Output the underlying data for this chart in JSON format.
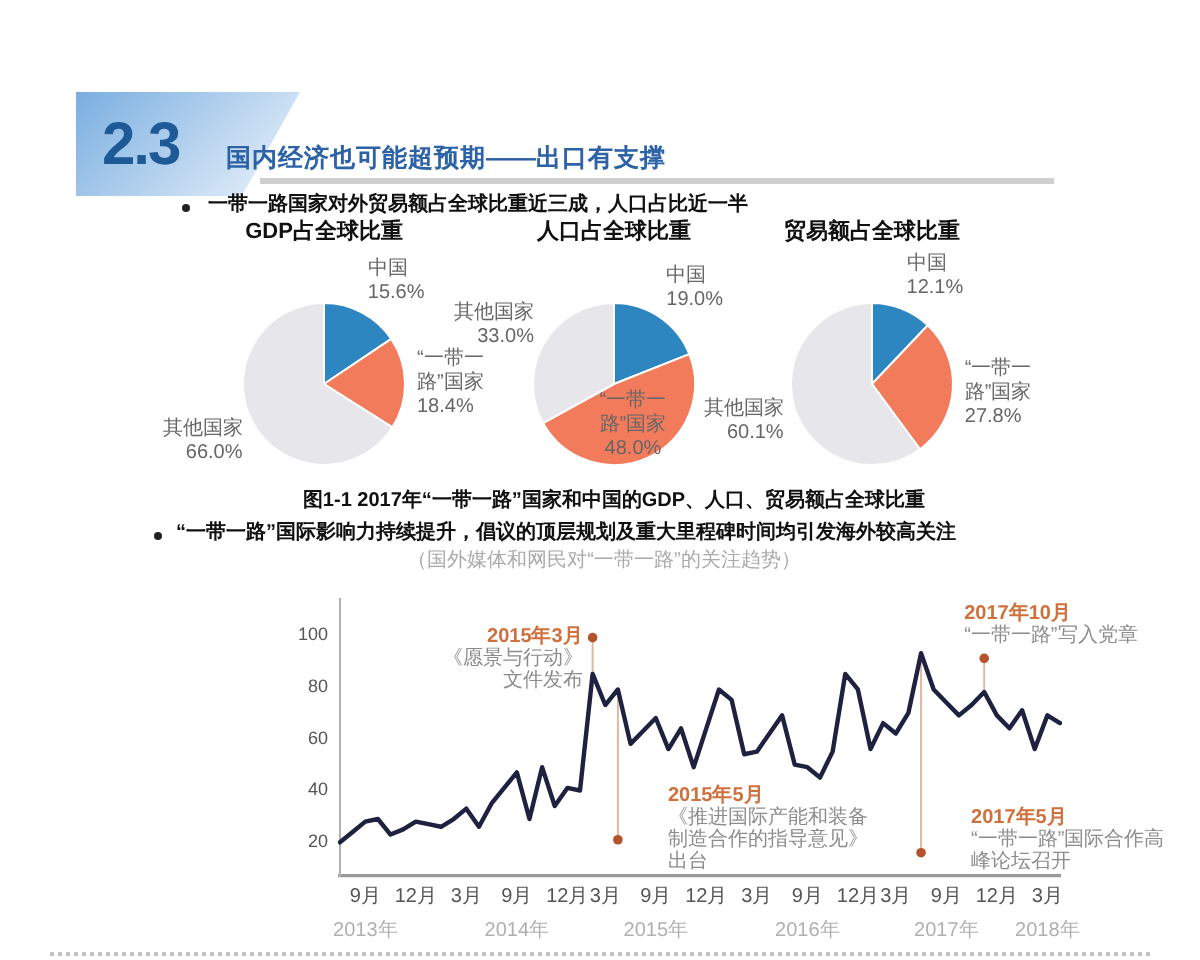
{
  "chart_data": [
    {
      "type": "other",
      "title": "国内经济也可能超预期——出口有支撑",
      "annotations": [
        "2.3",
        "一带一路国家对外贸易额占全球比重近三成，人口占比近一半",
        "图1-1 2017年“一带一路”国家和中国的GDP、人口、贸易额占全球比重"
      ]
    },
    {
      "type": "pie",
      "title": "GDP占全球比重",
      "categories": [
        "中国",
        "“一带一路”国家",
        "其他国家"
      ],
      "values": [
        15.6,
        18.4,
        66.0
      ],
      "value_labels": [
        "15.6%",
        "18.4%",
        "66.0%"
      ],
      "colors": [
        "#2e86c1",
        "#f27b5c",
        "#e6e6eb"
      ]
    },
    {
      "type": "pie",
      "title": "人口占全球比重",
      "categories": [
        "中国",
        "“一带一路”国家",
        "其他国家"
      ],
      "values": [
        19.0,
        48.0,
        33.0
      ],
      "value_labels": [
        "19.0%",
        "48.0%",
        "33.0%"
      ],
      "colors": [
        "#2e86c1",
        "#f27b5c",
        "#e6e6eb"
      ]
    },
    {
      "type": "pie",
      "title": "贸易额占全球比重",
      "categories": [
        "中国",
        "“一带一路”国家",
        "其他国家"
      ],
      "values": [
        12.1,
        27.8,
        60.1
      ],
      "value_labels": [
        "12.1%",
        "27.8%",
        "60.1%"
      ],
      "colors": [
        "#2e86c1",
        "#f27b5c",
        "#e6e6eb"
      ]
    },
    {
      "type": "line",
      "title": "“一带一路”国际影响力持续提升，倡议的顶层规划及重大里程碑时间均引发海外较高关注",
      "subtitle": "（国外媒体和网民对“一带一路”的关注趋势）",
      "categories": [
        null,
        null,
        "9月",
        null,
        null,
        null,
        "12月",
        null,
        null,
        null,
        "3月",
        null,
        null,
        null,
        "9月",
        null,
        null,
        null,
        "12月",
        null,
        null,
        "3月",
        null,
        null,
        null,
        "9月",
        null,
        null,
        null,
        "12月",
        null,
        null,
        null,
        "3月",
        null,
        null,
        null,
        "9月",
        null,
        null,
        null,
        "12月",
        null,
        null,
        "3月",
        null,
        null,
        null,
        "9月",
        null,
        null,
        null,
        "12月",
        null,
        null,
        null,
        "3月",
        null
      ],
      "series": [
        {
          "color": "#1e2140",
          "values": [
            20,
            24,
            28,
            29,
            23,
            25,
            28,
            27,
            26,
            29,
            33,
            26,
            35,
            41,
            47,
            29,
            49,
            34,
            41,
            40,
            85,
            73,
            79,
            58,
            63,
            68,
            56,
            64,
            49,
            64,
            79,
            75,
            54,
            55,
            62,
            69,
            50,
            49,
            45,
            55,
            85,
            79,
            56,
            66,
            62,
            70,
            93,
            79,
            74,
            69,
            73,
            78,
            69,
            64,
            71,
            56,
            69,
            66
          ]
        },
        {
          "type": "scatter",
          "color": "#b5532c",
          "values": [
            null,
            null,
            null,
            null,
            null,
            null,
            null,
            null,
            null,
            null,
            null,
            null,
            null,
            null,
            null,
            null,
            null,
            null,
            null,
            null,
            99,
            null,
            21,
            null,
            null,
            null,
            null,
            null,
            null,
            null,
            null,
            null,
            null,
            null,
            null,
            null,
            null,
            null,
            null,
            null,
            null,
            null,
            null,
            null,
            null,
            null,
            16,
            null,
            null,
            null,
            null,
            91,
            null,
            null,
            null,
            null,
            null,
            null
          ]
        }
      ],
      "ylim": [
        7,
        114
      ],
      "yticks": [
        20,
        40,
        60,
        80,
        100
      ],
      "annotations": [
        "2015年3月",
        "《愿景与行动》文件发布",
        "2015年5月",
        "《推进国际产能和装备制造合作的指导意见》出台",
        "2017年5月",
        "“一带一路”国际合作高峰论坛召开",
        "2017年10月",
        "“一带一路”写入党章",
        "2013年",
        "2014年",
        "2015年",
        "2016年",
        "2017年",
        "2018年"
      ]
    }
  ]
}
